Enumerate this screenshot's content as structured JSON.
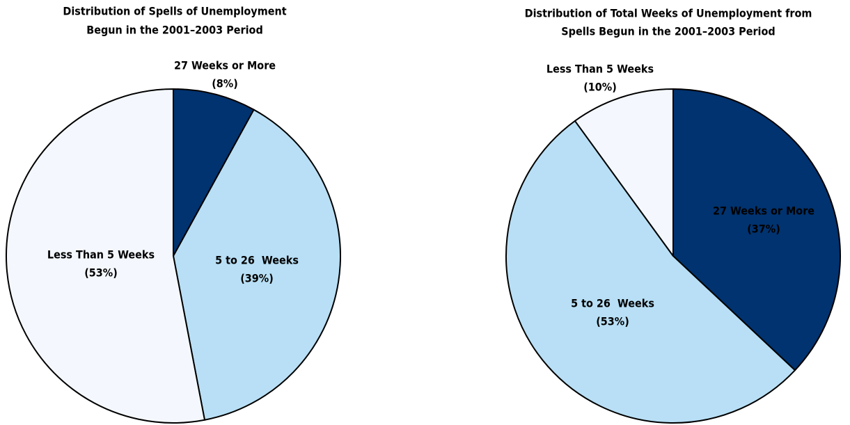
{
  "chart_data": [
    {
      "type": "pie",
      "title": [
        "Distribution of Spells of Unemployment",
        "Begun in the 2001–2003 Period"
      ],
      "categories": [
        "27 Weeks or More",
        "5 to 26  Weeks",
        "Less Than 5 Weeks"
      ],
      "values": [
        8,
        39,
        53
      ],
      "value_labels": [
        "(8%)",
        "(39%)",
        "(53%)"
      ],
      "colors": [
        "#003370",
        "#b8dff5",
        "#f4f8fe"
      ]
    },
    {
      "type": "pie",
      "title": [
        "Distribution of Total Weeks of Unemployment from",
        "Spells Begun in the 2001–2003 Period"
      ],
      "categories": [
        "27 Weeks or More",
        "5 to 26  Weeks",
        "Less Than 5 Weeks"
      ],
      "values": [
        37,
        53,
        10
      ],
      "value_labels": [
        "(37%)",
        "(53%)",
        "(10%)"
      ],
      "colors": [
        "#003370",
        "#b8dff5",
        "#f4f8fe"
      ]
    }
  ]
}
